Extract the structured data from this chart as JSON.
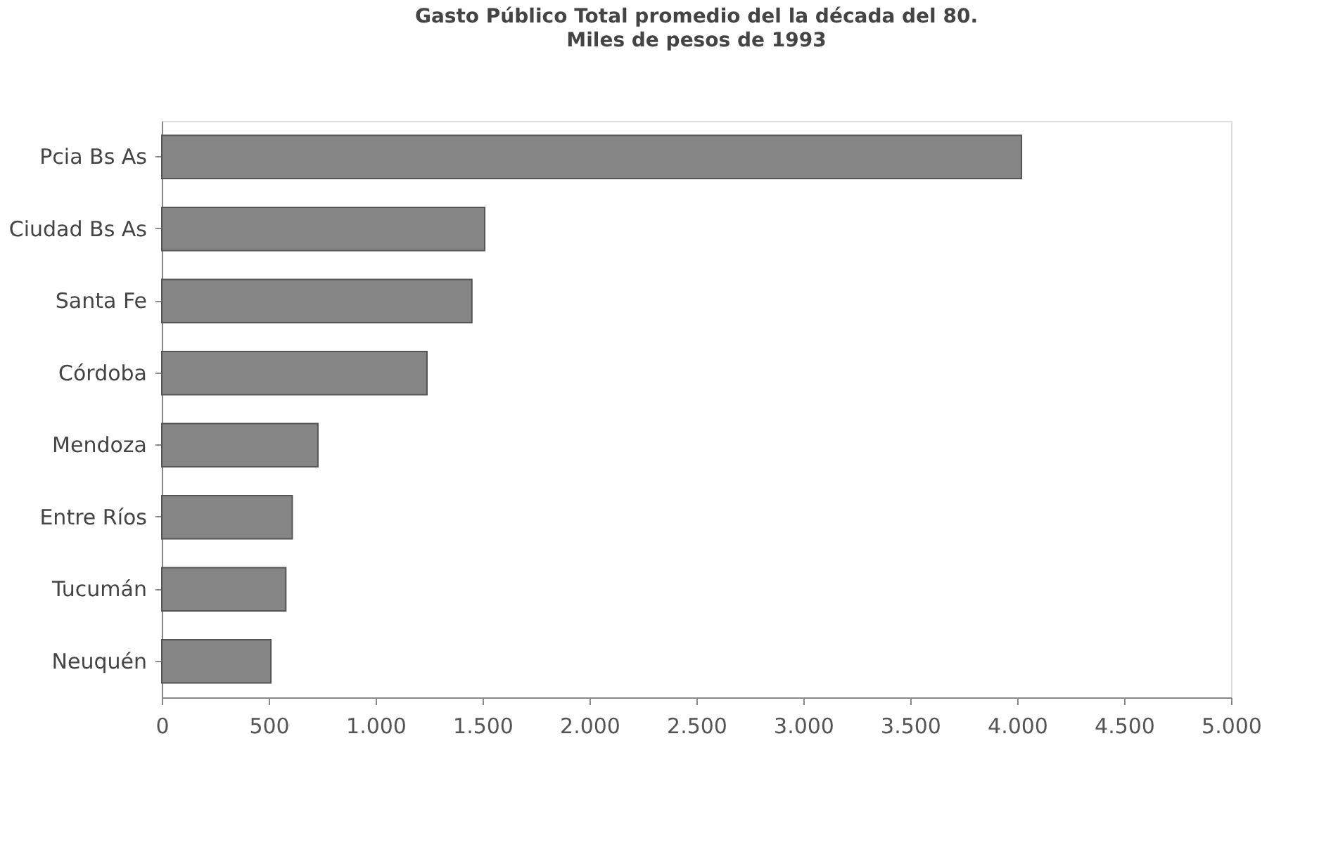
{
  "chart_data": {
    "type": "bar",
    "orientation": "horizontal",
    "title": "Gasto Público Total  promedio del la década del 80.",
    "subtitle": "Miles de pesos de 1993",
    "categories": [
      "Pcia Bs As",
      "Ciudad Bs As",
      "Santa Fe",
      "Córdoba",
      "Mendoza",
      "Entre Ríos",
      "Tucumán",
      "Neuquén"
    ],
    "values": [
      4020,
      1510,
      1450,
      1240,
      730,
      610,
      580,
      510
    ],
    "color": "#858585",
    "xlim": [
      0,
      5000
    ],
    "xticks": [
      0,
      500,
      {
        "value": 1000,
        "label": "1.000"
      },
      {
        "value": 1500,
        "label": "1.500"
      },
      {
        "value": 2000,
        "label": "2.000"
      },
      {
        "value": 2500,
        "label": "2.500"
      },
      {
        "value": 3000,
        "label": "3.000"
      },
      {
        "value": 3500,
        "label": "3.500"
      },
      {
        "value": 4000,
        "label": "4.000"
      },
      {
        "value": 4500,
        "label": "4.500"
      },
      {
        "value": 5000,
        "label": "5.000"
      }
    ],
    "grid": false
  }
}
